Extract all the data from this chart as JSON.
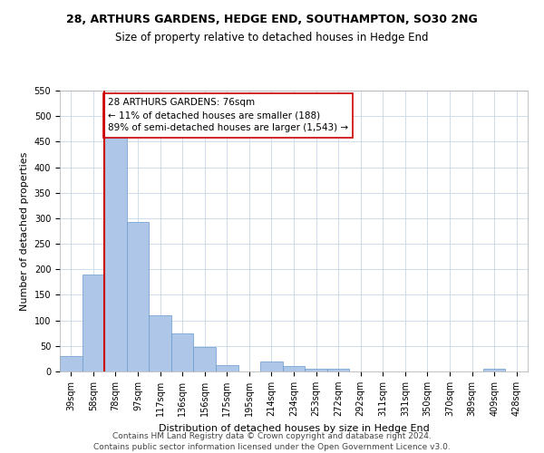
{
  "title": "28, ARTHURS GARDENS, HEDGE END, SOUTHAMPTON, SO30 2NG",
  "subtitle": "Size of property relative to detached houses in Hedge End",
  "xlabel": "Distribution of detached houses by size in Hedge End",
  "ylabel": "Number of detached properties",
  "categories": [
    "39sqm",
    "58sqm",
    "78sqm",
    "97sqm",
    "117sqm",
    "136sqm",
    "156sqm",
    "175sqm",
    "195sqm",
    "214sqm",
    "234sqm",
    "253sqm",
    "272sqm",
    "292sqm",
    "311sqm",
    "331sqm",
    "350sqm",
    "370sqm",
    "389sqm",
    "409sqm",
    "428sqm"
  ],
  "values": [
    30,
    190,
    460,
    293,
    110,
    75,
    48,
    13,
    0,
    20,
    10,
    5,
    5,
    0,
    0,
    0,
    0,
    0,
    0,
    5,
    0
  ],
  "bar_color": "#aec6e8",
  "bar_edge_color": "#6699cc",
  "ref_line_color": "#cc0000",
  "annotation_text": "28 ARTHURS GARDENS: 76sqm\n← 11% of detached houses are smaller (188)\n89% of semi-detached houses are larger (1,543) →",
  "annotation_box_color": "#ffffff",
  "annotation_box_edge_color": "#cc0000",
  "ylim": [
    0,
    550
  ],
  "yticks": [
    0,
    50,
    100,
    150,
    200,
    250,
    300,
    350,
    400,
    450,
    500,
    550
  ],
  "footer_line1": "Contains HM Land Registry data © Crown copyright and database right 2024.",
  "footer_line2": "Contains public sector information licensed under the Open Government Licence v3.0.",
  "bg_color": "#ffffff",
  "grid_color": "#c8d8e8",
  "title_fontsize": 9,
  "subtitle_fontsize": 8.5,
  "xlabel_fontsize": 8,
  "ylabel_fontsize": 8,
  "tick_fontsize": 7,
  "annotation_fontsize": 7.5,
  "footer_fontsize": 6.5
}
